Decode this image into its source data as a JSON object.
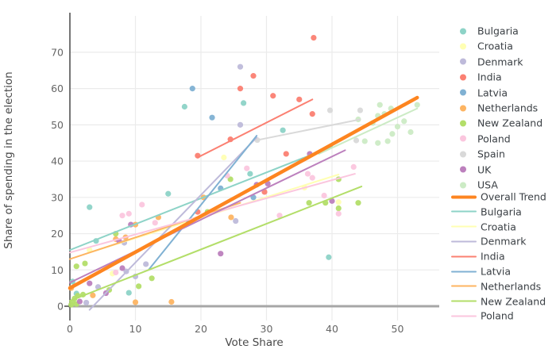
{
  "chart_data": {
    "type": "scatter",
    "title": "",
    "xlabel": "Vote Share",
    "ylabel": "Share of spending in the election",
    "x_ticks": [
      0,
      10,
      20,
      30,
      40,
      50
    ],
    "y_ticks": [
      0,
      10,
      20,
      30,
      40,
      50,
      60,
      70
    ],
    "xlim": [
      -1,
      56.4
    ],
    "ylim": [
      -4.2,
      80
    ],
    "grid": true,
    "legend_position": "right",
    "series": [
      {
        "name": "Bulgaria",
        "color": "#8dd3c7",
        "points": [
          [
            0.4,
            6.8
          ],
          [
            1,
            3.5
          ],
          [
            3,
            27.3
          ],
          [
            4,
            18
          ],
          [
            9,
            3.7
          ],
          [
            15,
            31
          ],
          [
            17.5,
            55
          ],
          [
            26.5,
            56
          ],
          [
            27.5,
            36.5
          ],
          [
            32.5,
            48.5
          ],
          [
            39.5,
            13.5
          ]
        ]
      },
      {
        "name": "Croatia",
        "color": "#ffffb3",
        "points": [
          [
            3,
            15.5
          ],
          [
            6.5,
            9
          ],
          [
            23.5,
            41
          ],
          [
            35.8,
            32.7
          ],
          [
            41,
            28.7
          ]
        ]
      },
      {
        "name": "Denmark",
        "color": "#bebada",
        "points": [
          [
            2.5,
            1
          ],
          [
            4.3,
            5.3
          ],
          [
            8.3,
            17.5
          ],
          [
            8.6,
            9.6
          ],
          [
            10,
            8.2
          ],
          [
            11.6,
            11.6
          ],
          [
            25.3,
            23.5
          ],
          [
            26,
            50
          ],
          [
            26,
            66
          ]
        ]
      },
      {
        "name": "India",
        "color": "#fb8072",
        "points": [
          [
            19.5,
            26
          ],
          [
            19.5,
            41.5
          ],
          [
            24.5,
            46
          ],
          [
            26,
            60
          ],
          [
            28,
            63.5
          ],
          [
            29.7,
            31.5
          ],
          [
            31,
            58
          ],
          [
            33,
            42
          ],
          [
            35,
            57
          ],
          [
            37,
            53
          ],
          [
            37.2,
            74
          ]
        ]
      },
      {
        "name": "Latvia",
        "color": "#80b1d3",
        "points": [
          [
            18.7,
            60
          ],
          [
            21.7,
            52
          ],
          [
            23,
            32.5
          ],
          [
            28,
            30
          ]
        ]
      },
      {
        "name": "Netherlands",
        "color": "#fdb462",
        "points": [
          [
            0.2,
            5
          ],
          [
            3.5,
            3
          ],
          [
            7,
            18.5
          ],
          [
            8.5,
            19
          ],
          [
            10,
            1.1
          ],
          [
            10,
            22.5
          ],
          [
            13.5,
            24.5
          ],
          [
            15.5,
            1.2
          ],
          [
            20.4,
            30
          ],
          [
            24.6,
            24.5
          ]
        ]
      },
      {
        "name": "New Zealand",
        "color": "#b3de69",
        "points": [
          [
            0.2,
            0.4
          ],
          [
            0.4,
            1.2
          ],
          [
            0.7,
            2.1
          ],
          [
            1,
            0.6
          ],
          [
            1.2,
            2.9
          ],
          [
            2,
            3.2
          ],
          [
            1,
            11
          ],
          [
            2.3,
            11.8
          ],
          [
            6,
            4.5
          ],
          [
            7,
            20
          ],
          [
            10.5,
            5.5
          ],
          [
            12.5,
            7.7
          ],
          [
            21,
            26
          ],
          [
            24.5,
            35
          ],
          [
            36.5,
            28.5
          ],
          [
            39,
            28.5
          ],
          [
            41,
            27
          ],
          [
            41,
            35
          ],
          [
            44,
            28.5
          ]
        ]
      },
      {
        "name": "Poland",
        "color": "#fbc6de",
        "points": [
          [
            7,
            9.3
          ],
          [
            8,
            25
          ],
          [
            9,
            25.5
          ],
          [
            11,
            28
          ],
          [
            13,
            23
          ],
          [
            24,
            36
          ],
          [
            27,
            38
          ],
          [
            32,
            25
          ],
          [
            36.3,
            36.5
          ],
          [
            37,
            35.4
          ],
          [
            38.8,
            30.5
          ],
          [
            41,
            25.5
          ],
          [
            43.3,
            38.4
          ]
        ]
      },
      {
        "name": "Spain",
        "color": "#d9d9d9",
        "points": [
          [
            28.6,
            45.8
          ],
          [
            39.7,
            54
          ],
          [
            43.7,
            45.7
          ],
          [
            44.3,
            54
          ]
        ]
      },
      {
        "name": "UK",
        "color": "#bc80bd",
        "points": [
          [
            1.5,
            1.3
          ],
          [
            3,
            6.3
          ],
          [
            5.5,
            3.6
          ],
          [
            7.5,
            18
          ],
          [
            8,
            10.5
          ],
          [
            9.3,
            22.5
          ],
          [
            23,
            14.5
          ],
          [
            28.5,
            33.5
          ],
          [
            30.2,
            33.8
          ],
          [
            36.6,
            42
          ],
          [
            40,
            29
          ]
        ]
      },
      {
        "name": "USA",
        "color": "#ccebc5",
        "points": [
          [
            44,
            51.5
          ],
          [
            45,
            45.5
          ],
          [
            46.2,
            50.5
          ],
          [
            47,
            45
          ],
          [
            47,
            52.5
          ],
          [
            47.3,
            55.5
          ],
          [
            48,
            53
          ],
          [
            48.5,
            45.5
          ],
          [
            49,
            54.5
          ],
          [
            49.2,
            47.5
          ],
          [
            50,
            49.5
          ],
          [
            51,
            51
          ],
          [
            52,
            48
          ],
          [
            53,
            55.5
          ]
        ]
      }
    ],
    "trend_lines": [
      {
        "name": "Bulgaria",
        "color": "#8dd3c7",
        "width": 2,
        "x1": 0,
        "y1": 15.5,
        "x2": 40,
        "y2": 44
      },
      {
        "name": "Croatia",
        "color": "#ffffb3",
        "width": 2,
        "x1": 3,
        "y1": 14.8,
        "x2": 41,
        "y2": 36.3
      },
      {
        "name": "Denmark",
        "color": "#bebada",
        "width": 2,
        "x1": 3,
        "y1": -1,
        "x2": 28.5,
        "y2": 46.5
      },
      {
        "name": "India",
        "color": "#fb8072",
        "width": 2,
        "x1": 19.5,
        "y1": 41,
        "x2": 37,
        "y2": 57
      },
      {
        "name": "Latvia",
        "color": "#80b1d3",
        "width": 2,
        "x1": 12,
        "y1": 10,
        "x2": 28.5,
        "y2": 47
      },
      {
        "name": "Netherlands",
        "color": "#fdb462",
        "width": 2,
        "x1": 0,
        "y1": 13,
        "x2": 26,
        "y2": 28.5
      },
      {
        "name": "New Zealand",
        "color": "#b3de69",
        "width": 2,
        "x1": 0,
        "y1": 1.5,
        "x2": 44.5,
        "y2": 33
      },
      {
        "name": "Poland",
        "color": "#fbc6de",
        "width": 2,
        "x1": 0,
        "y1": 14.8,
        "x2": 43.5,
        "y2": 36.5
      },
      {
        "name": "Spain",
        "color": "#d9d9d9",
        "width": 2,
        "x1": 28.6,
        "y1": 45.8,
        "x2": 44.3,
        "y2": 51.5
      },
      {
        "name": "UK",
        "color": "#bc80bd",
        "width": 2,
        "x1": 0,
        "y1": 6.5,
        "x2": 42,
        "y2": 43
      },
      {
        "name": "USA",
        "color": "#ccebc5",
        "width": 2,
        "x1": 38,
        "y1": 42,
        "x2": 53,
        "y2": 54.5
      },
      {
        "name": "Overall Trend",
        "color": "#fd8520",
        "width": 4.5,
        "x1": 0,
        "y1": 5,
        "x2": 53,
        "y2": 57.5
      }
    ],
    "legend": {
      "points": [
        {
          "label": "Bulgaria",
          "color": "#8dd3c7"
        },
        {
          "label": "Croatia",
          "color": "#ffffb3"
        },
        {
          "label": "Denmark",
          "color": "#bebada"
        },
        {
          "label": "India",
          "color": "#fb8072"
        },
        {
          "label": "Latvia",
          "color": "#80b1d3"
        },
        {
          "label": "Netherlands",
          "color": "#fdb462"
        },
        {
          "label": "New Zealand",
          "color": "#b3de69"
        },
        {
          "label": "Poland",
          "color": "#fbc6de"
        },
        {
          "label": "Spain",
          "color": "#d9d9d9"
        },
        {
          "label": "UK",
          "color": "#bc80bd"
        },
        {
          "label": "USA",
          "color": "#ccebc5"
        }
      ],
      "lines": [
        {
          "label": "Overall Trend",
          "color": "#fd8520",
          "thick": true
        },
        {
          "label": "Bulgaria",
          "color": "#8dd3c7",
          "thick": false
        },
        {
          "label": "Croatia",
          "color": "#ffffb3",
          "thick": false
        },
        {
          "label": "Denmark",
          "color": "#bebada",
          "thick": false
        },
        {
          "label": "India",
          "color": "#fb8072",
          "thick": false
        },
        {
          "label": "Latvia",
          "color": "#80b1d3",
          "thick": false
        },
        {
          "label": "Netherlands",
          "color": "#fdb462",
          "thick": false
        },
        {
          "label": "New Zealand",
          "color": "#b3de69",
          "thick": false
        },
        {
          "label": "Poland",
          "color": "#fbc6de",
          "thick": false
        }
      ]
    },
    "style": {
      "grid_color": "#ebebeb",
      "zero_line_color": "#a7a7a7",
      "axis_line_color": "#3c3c3c",
      "tick_color": "#666666"
    }
  }
}
